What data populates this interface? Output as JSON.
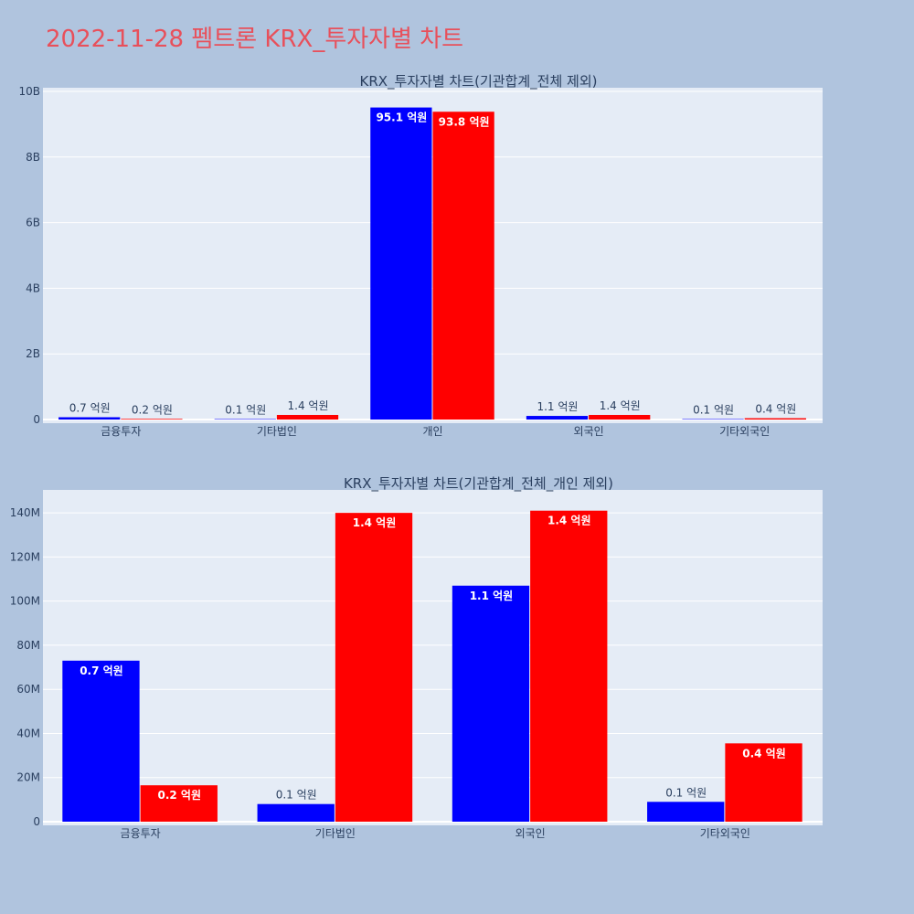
{
  "title": "2022-11-28 펨트론 KRX_투자자별 차트",
  "colors": {
    "buy": "#0000ff",
    "sell": "#ff0000",
    "background": "#b0c4de",
    "plot_bg": "#e5ecf6",
    "title": "#e8505b"
  },
  "chart_data": [
    {
      "type": "bar",
      "title": "KRX_투자자별 차트(기관합계_전체 제외)",
      "categories": [
        "금융투자",
        "기타법인",
        "개인",
        "외국인",
        "기타외국인"
      ],
      "series": [
        {
          "color": "#0000ff",
          "values": [
            70000000,
            10000000,
            9510000000,
            110000000,
            10000000
          ],
          "labels": [
            "0.7 억원",
            "0.1 억원",
            "95.1 억원",
            "1.1 억원",
            "0.1 억원"
          ]
        },
        {
          "color": "#ff0000",
          "values": [
            20000000,
            140000000,
            9380000000,
            140000000,
            40000000
          ],
          "labels": [
            "0.2 억원",
            "1.4 억원",
            "93.8 억원",
            "1.4 억원",
            "0.4 억원"
          ]
        }
      ],
      "yticks": [
        0,
        2000000000,
        4000000000,
        6000000000,
        8000000000,
        10000000000
      ],
      "ytick_labels": [
        "0",
        "2B",
        "4B",
        "6B",
        "8B",
        "10B"
      ],
      "ylim": [
        0,
        10000000000
      ],
      "grid": true
    },
    {
      "type": "bar",
      "title": "KRX_투자자별 차트(기관합계_전체_개인 제외)",
      "categories": [
        "금융투자",
        "기타법인",
        "외국인",
        "기타외국인"
      ],
      "series": [
        {
          "color": "#0000ff",
          "values": [
            73000000,
            8000000,
            107000000,
            9000000
          ],
          "labels": [
            "0.7 억원",
            "0.1 억원",
            "1.1 억원",
            "0.1 억원"
          ]
        },
        {
          "color": "#ff0000",
          "values": [
            16500000,
            140000000,
            141000000,
            35500000
          ],
          "labels": [
            "0.2 억원",
            "1.4 억원",
            "1.4 억원",
            "0.4 억원"
          ]
        }
      ],
      "yticks": [
        0,
        20000000,
        40000000,
        60000000,
        80000000,
        100000000,
        120000000,
        140000000
      ],
      "ytick_labels": [
        "0",
        "20M",
        "40M",
        "60M",
        "80M",
        "100M",
        "120M",
        "140M"
      ],
      "ylim": [
        0,
        150000000
      ],
      "grid": true
    }
  ]
}
